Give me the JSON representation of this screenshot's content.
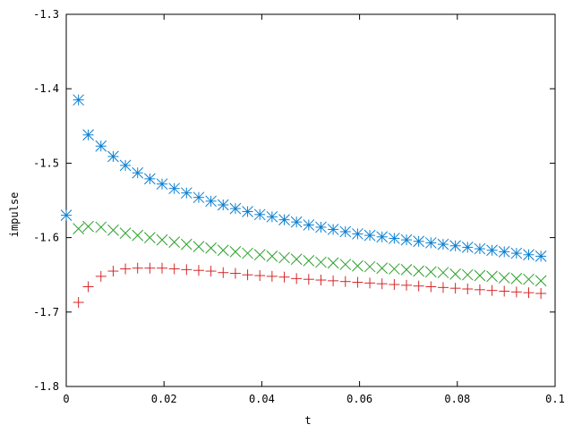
{
  "chart_data": {
    "type": "scatter",
    "title": "",
    "xlabel": "t",
    "ylabel": "impulse",
    "xlim": [
      0,
      0.1
    ],
    "ylim": [
      -1.8,
      -1.3
    ],
    "grid": false,
    "legend": "none",
    "x_ticks": [
      0,
      0.02,
      0.04,
      0.06,
      0.08,
      0.1
    ],
    "x_tick_labels": [
      "0",
      "0.02",
      "0.04",
      "0.06",
      "0.08",
      "0.1"
    ],
    "y_ticks": [
      -1.8,
      -1.7,
      -1.6,
      -1.5,
      -1.4,
      -1.3
    ],
    "y_tick_labels": [
      "-1.8",
      "-1.7",
      "-1.6",
      "-1.5",
      "-1.4",
      "-1.3"
    ],
    "series": [
      {
        "marker": "asterisk",
        "color": "#0a7fd1",
        "points": [
          [
            0.0,
            -1.57
          ],
          [
            0.0025,
            -1.415
          ],
          [
            0.0045,
            -1.462
          ],
          [
            0.0071,
            -1.477
          ],
          [
            0.0096,
            -1.491
          ],
          [
            0.0121,
            -1.503
          ],
          [
            0.0146,
            -1.513
          ],
          [
            0.0171,
            -1.521
          ],
          [
            0.0196,
            -1.528
          ],
          [
            0.0221,
            -1.534
          ],
          [
            0.0246,
            -1.54
          ],
          [
            0.0271,
            -1.546
          ],
          [
            0.0296,
            -1.551
          ],
          [
            0.0321,
            -1.556
          ],
          [
            0.0346,
            -1.561
          ],
          [
            0.0371,
            -1.565
          ],
          [
            0.0396,
            -1.569
          ],
          [
            0.0421,
            -1.572
          ],
          [
            0.0446,
            -1.576
          ],
          [
            0.0471,
            -1.579
          ],
          [
            0.0496,
            -1.583
          ],
          [
            0.0521,
            -1.586
          ],
          [
            0.0546,
            -1.589
          ],
          [
            0.0571,
            -1.592
          ],
          [
            0.0596,
            -1.595
          ],
          [
            0.0621,
            -1.597
          ],
          [
            0.0646,
            -1.599
          ],
          [
            0.0671,
            -1.601
          ],
          [
            0.0696,
            -1.603
          ],
          [
            0.0721,
            -1.605
          ],
          [
            0.0746,
            -1.607
          ],
          [
            0.0771,
            -1.609
          ],
          [
            0.0796,
            -1.611
          ],
          [
            0.0821,
            -1.613
          ],
          [
            0.0846,
            -1.615
          ],
          [
            0.0871,
            -1.617
          ],
          [
            0.0896,
            -1.619
          ],
          [
            0.0921,
            -1.621
          ],
          [
            0.0946,
            -1.623
          ],
          [
            0.0971,
            -1.625
          ]
        ]
      },
      {
        "marker": "cross",
        "color": "#2ca02c",
        "points": [
          [
            0.0025,
            -1.588
          ],
          [
            0.0045,
            -1.585
          ],
          [
            0.0071,
            -1.586
          ],
          [
            0.0096,
            -1.59
          ],
          [
            0.0121,
            -1.594
          ],
          [
            0.0146,
            -1.597
          ],
          [
            0.0171,
            -1.6
          ],
          [
            0.0196,
            -1.603
          ],
          [
            0.0221,
            -1.606
          ],
          [
            0.0246,
            -1.609
          ],
          [
            0.0271,
            -1.612
          ],
          [
            0.0296,
            -1.614
          ],
          [
            0.0321,
            -1.617
          ],
          [
            0.0346,
            -1.619
          ],
          [
            0.0371,
            -1.621
          ],
          [
            0.0396,
            -1.623
          ],
          [
            0.0421,
            -1.625
          ],
          [
            0.0446,
            -1.627
          ],
          [
            0.0471,
            -1.629
          ],
          [
            0.0496,
            -1.631
          ],
          [
            0.0521,
            -1.633
          ],
          [
            0.0546,
            -1.634
          ],
          [
            0.0571,
            -1.636
          ],
          [
            0.0596,
            -1.638
          ],
          [
            0.0621,
            -1.639
          ],
          [
            0.0646,
            -1.641
          ],
          [
            0.0671,
            -1.642
          ],
          [
            0.0696,
            -1.643
          ],
          [
            0.0721,
            -1.645
          ],
          [
            0.0746,
            -1.646
          ],
          [
            0.0771,
            -1.647
          ],
          [
            0.0796,
            -1.649
          ],
          [
            0.0821,
            -1.65
          ],
          [
            0.0846,
            -1.651
          ],
          [
            0.0871,
            -1.652
          ],
          [
            0.0896,
            -1.654
          ],
          [
            0.0921,
            -1.655
          ],
          [
            0.0946,
            -1.656
          ],
          [
            0.0971,
            -1.658
          ]
        ]
      },
      {
        "marker": "plus",
        "color": "#d62728",
        "points": [
          [
            0.0025,
            -1.687
          ],
          [
            0.0045,
            -1.666
          ],
          [
            0.0071,
            -1.652
          ],
          [
            0.0096,
            -1.645
          ],
          [
            0.0121,
            -1.642
          ],
          [
            0.0146,
            -1.641
          ],
          [
            0.0171,
            -1.641
          ],
          [
            0.0196,
            -1.641
          ],
          [
            0.0221,
            -1.642
          ],
          [
            0.0246,
            -1.643
          ],
          [
            0.0271,
            -1.644
          ],
          [
            0.0296,
            -1.645
          ],
          [
            0.0321,
            -1.647
          ],
          [
            0.0346,
            -1.648
          ],
          [
            0.0371,
            -1.65
          ],
          [
            0.0396,
            -1.651
          ],
          [
            0.0421,
            -1.652
          ],
          [
            0.0446,
            -1.653
          ],
          [
            0.0471,
            -1.655
          ],
          [
            0.0496,
            -1.656
          ],
          [
            0.0521,
            -1.657
          ],
          [
            0.0546,
            -1.658
          ],
          [
            0.0571,
            -1.659
          ],
          [
            0.0596,
            -1.66
          ],
          [
            0.0621,
            -1.661
          ],
          [
            0.0646,
            -1.662
          ],
          [
            0.0671,
            -1.663
          ],
          [
            0.0696,
            -1.664
          ],
          [
            0.0721,
            -1.665
          ],
          [
            0.0746,
            -1.666
          ],
          [
            0.0771,
            -1.667
          ],
          [
            0.0796,
            -1.668
          ],
          [
            0.0821,
            -1.669
          ],
          [
            0.0846,
            -1.67
          ],
          [
            0.0871,
            -1.671
          ],
          [
            0.0896,
            -1.672
          ],
          [
            0.0921,
            -1.673
          ],
          [
            0.0946,
            -1.674
          ],
          [
            0.0971,
            -1.675
          ]
        ]
      }
    ]
  }
}
